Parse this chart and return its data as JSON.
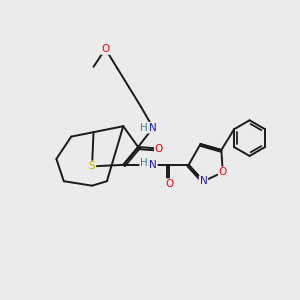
{
  "bg_color": "#ebebeb",
  "bond_color": "#1a1a1a",
  "bond_width": 1.4,
  "atom_colors": {
    "O": "#ff0000",
    "N": "#1414cc",
    "S": "#b8b800",
    "H": "#2e8b8b",
    "C": "#1a1a1a"
  },
  "font_size": 7.5,
  "figsize": [
    3.0,
    3.0
  ],
  "dpi": 100,
  "xlim": [
    0,
    10
  ],
  "ylim": [
    0,
    10
  ]
}
